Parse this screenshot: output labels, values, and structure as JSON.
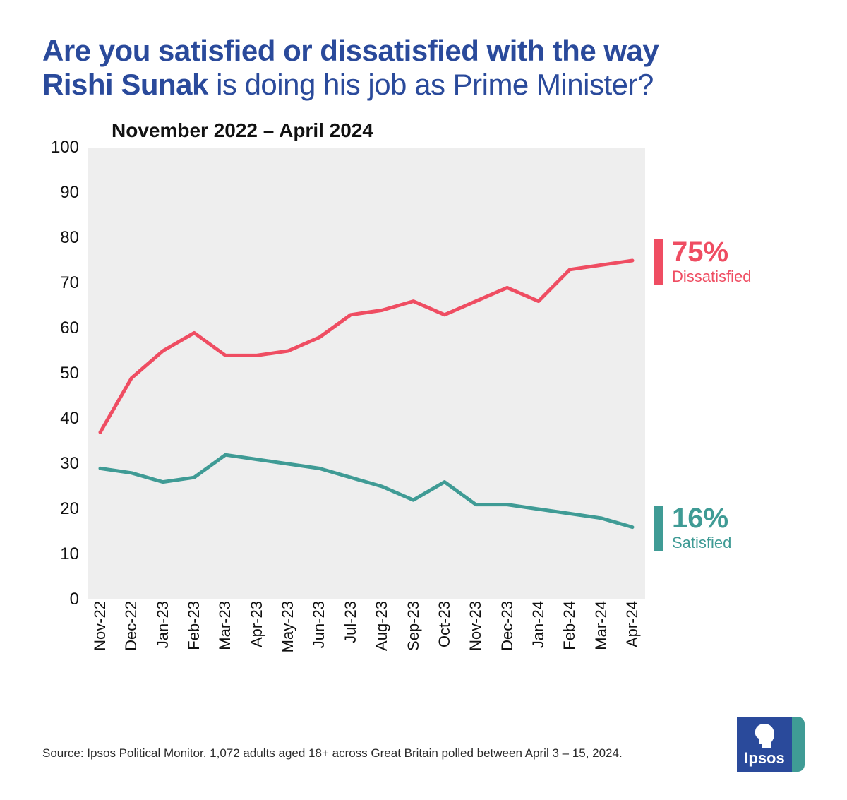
{
  "title": {
    "line1": "Are you satisfied or dissatisfied with the way",
    "line2_bold": "Rishi Sunak",
    "line2_rest": " is doing his job as Prime Minister?",
    "color": "#2a4a9b",
    "fontsize": 42
  },
  "subtitle": {
    "text": "November 2022 – April 2024",
    "color": "#111111",
    "fontsize": 28
  },
  "chart": {
    "type": "line",
    "background_color": "#eeeeee",
    "page_background": "#ffffff",
    "ylim": [
      0,
      100
    ],
    "ytick_step": 10,
    "yticks": [
      0,
      10,
      20,
      30,
      40,
      50,
      60,
      70,
      80,
      90,
      100
    ],
    "axis_text_color": "#111111",
    "axis_fontsize": 24,
    "line_width": 5,
    "categories": [
      "Nov-22",
      "Dec-22",
      "Jan-23",
      "Feb-23",
      "Mar-23",
      "Apr-23",
      "May-23",
      "Jun-23",
      "Jul-23",
      "Aug-23",
      "Sep-23",
      "Oct-23",
      "Nov-23",
      "Dec-23",
      "Jan-24",
      "Feb-24",
      "Mar-24",
      "Apr-24"
    ],
    "series": [
      {
        "name": "Dissatisfied",
        "color": "#ef4d62",
        "values": [
          37,
          49,
          55,
          59,
          54,
          54,
          55,
          58,
          63,
          64,
          66,
          63,
          66,
          69,
          66,
          73,
          74,
          75
        ],
        "end_value_label": "75%",
        "end_word": "Dissatisfied"
      },
      {
        "name": "Satisfied",
        "color": "#3f9b95",
        "values": [
          29,
          28,
          26,
          27,
          32,
          31,
          30,
          29,
          27,
          25,
          22,
          26,
          21,
          21,
          20,
          19,
          18,
          16
        ],
        "end_value_label": "16%",
        "end_word": "Satisfied"
      }
    ]
  },
  "source": {
    "text": "Source: Ipsos Political Monitor. 1,072 adults aged 18+ across Great Britain polled between April 3 – 15, 2024.",
    "color": "#2a2a2a",
    "fontsize": 17
  },
  "logo": {
    "text": "Ipsos",
    "box_color": "#2a4a9b",
    "accent_color": "#3f9b95",
    "head_color": "#ffffff"
  }
}
